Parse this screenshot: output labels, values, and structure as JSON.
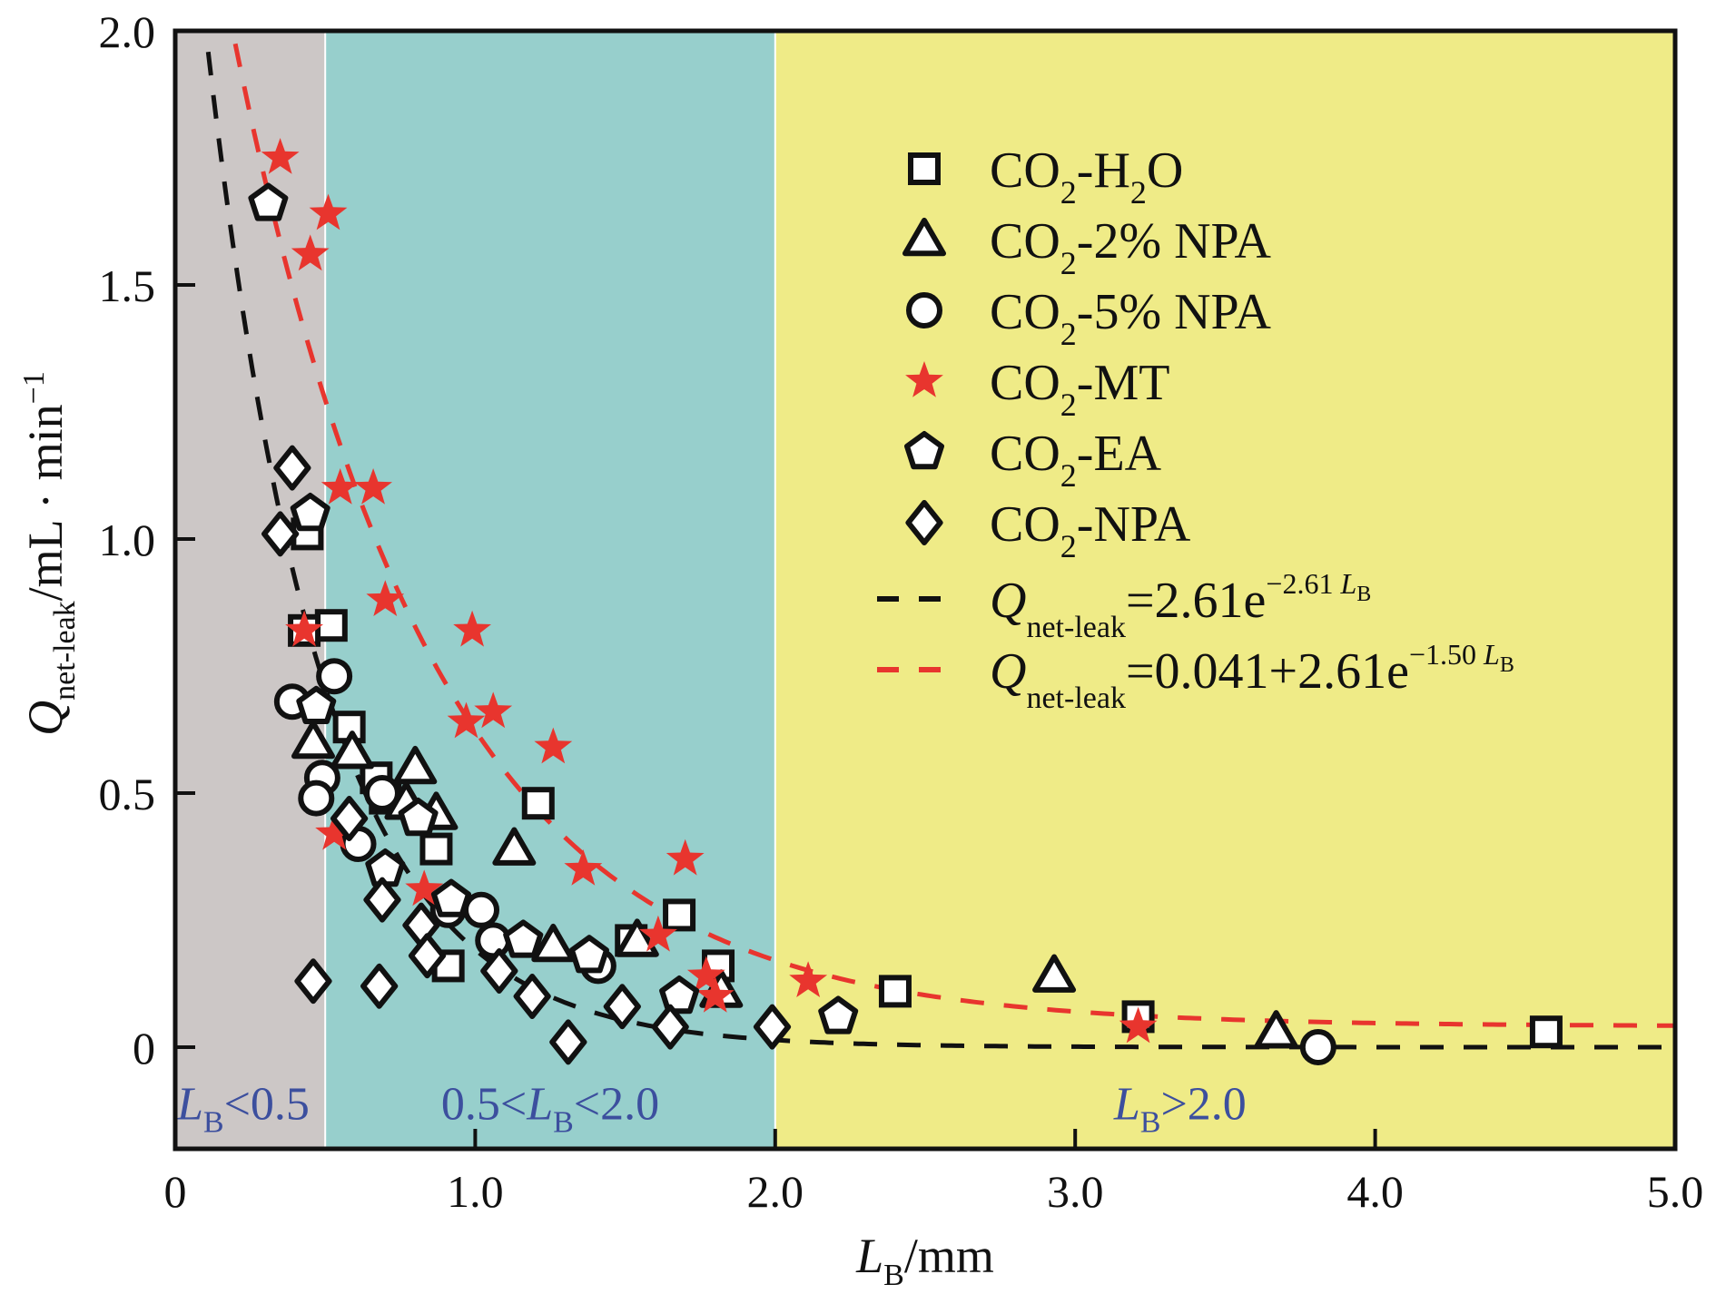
{
  "chart_data": {
    "type": "scatter",
    "title": "",
    "xlabel": {
      "main": "L",
      "sub": "B",
      "rest": "/mm"
    },
    "ylabel": {
      "main": "Q",
      "sub": "net-leak",
      "rest": "/mL · min",
      "sup": "−1"
    },
    "xlim": [
      0,
      5.0
    ],
    "ylim": [
      -0.2,
      2.0
    ],
    "xticks": [
      0,
      1.0,
      2.0,
      3.0,
      4.0,
      5.0
    ],
    "xtick_labels": [
      "0",
      "1.0",
      "2.0",
      "3.0",
      "4.0",
      "5.0"
    ],
    "yticks": [
      0,
      0.5,
      1.0,
      1.5,
      2.0
    ],
    "ytick_labels": [
      "0",
      "0.5",
      "1.0",
      "1.5",
      "2.0"
    ],
    "grid": false,
    "legend_position": "top-right",
    "regions": [
      {
        "x0": 0,
        "x1": 0.5,
        "color": "#ccc7c6",
        "label_main": "L",
        "label_sub": "B",
        "label_rest": "<0.5",
        "label_prefix": ""
      },
      {
        "x0": 0.5,
        "x1": 2.0,
        "color": "#97cfcc",
        "label_prefix": "0.5<",
        "label_main": "L",
        "label_sub": "B",
        "label_rest": "<2.0"
      },
      {
        "x0": 2.0,
        "x1": 5.0,
        "color": "#efeb87",
        "label_prefix": "",
        "label_main": "L",
        "label_sub": "B",
        "label_rest": ">2.0"
      }
    ],
    "series": [
      {
        "name": "CO2-H2O",
        "label_parts": [
          "CO",
          "2",
          "-H",
          "2",
          "O"
        ],
        "marker": "square",
        "fill": "#ffffff",
        "stroke": "#111111",
        "points": [
          [
            0.44,
            1.01
          ],
          [
            0.52,
            0.83
          ],
          [
            0.43,
            0.82
          ],
          [
            0.58,
            0.63
          ],
          [
            0.67,
            0.53
          ],
          [
            0.7,
            0.49
          ],
          [
            0.87,
            0.39
          ],
          [
            1.21,
            0.48
          ],
          [
            0.91,
            0.16
          ],
          [
            1.68,
            0.26
          ],
          [
            1.81,
            0.16
          ],
          [
            1.52,
            0.21
          ],
          [
            2.4,
            0.11
          ],
          [
            3.21,
            0.06
          ],
          [
            4.57,
            0.03
          ]
        ]
      },
      {
        "name": "CO2-2% NPA",
        "label_parts": [
          "CO",
          "2",
          "-2% NPA"
        ],
        "marker": "triangle",
        "fill": "#ffffff",
        "stroke": "#111111",
        "points": [
          [
            0.46,
            0.6
          ],
          [
            0.59,
            0.58
          ],
          [
            0.8,
            0.55
          ],
          [
            0.87,
            0.46
          ],
          [
            0.77,
            0.48
          ],
          [
            1.13,
            0.39
          ],
          [
            1.26,
            0.2
          ],
          [
            1.54,
            0.21
          ],
          [
            1.82,
            0.11
          ],
          [
            2.93,
            0.14
          ],
          [
            3.67,
            0.03
          ]
        ]
      },
      {
        "name": "CO2-5% NPA",
        "label_parts": [
          "CO",
          "2",
          "-5% NPA"
        ],
        "marker": "circle",
        "fill": "#ffffff",
        "stroke": "#111111",
        "points": [
          [
            0.53,
            0.73
          ],
          [
            0.39,
            0.68
          ],
          [
            0.49,
            0.53
          ],
          [
            0.47,
            0.49
          ],
          [
            0.61,
            0.4
          ],
          [
            0.69,
            0.5
          ],
          [
            0.91,
            0.27
          ],
          [
            1.02,
            0.27
          ],
          [
            1.06,
            0.21
          ],
          [
            1.41,
            0.16
          ],
          [
            3.81,
            0.0
          ]
        ]
      },
      {
        "name": "CO2-MT",
        "label_parts": [
          "CO",
          "2",
          "-MT"
        ],
        "marker": "star",
        "fill": "#e8352e",
        "stroke": "none",
        "points": [
          [
            0.35,
            1.75
          ],
          [
            0.51,
            1.64
          ],
          [
            0.45,
            1.56
          ],
          [
            0.55,
            1.1
          ],
          [
            0.66,
            1.1
          ],
          [
            0.7,
            0.88
          ],
          [
            0.99,
            0.82
          ],
          [
            0.97,
            0.64
          ],
          [
            1.06,
            0.66
          ],
          [
            1.26,
            0.59
          ],
          [
            1.36,
            0.35
          ],
          [
            1.7,
            0.37
          ],
          [
            1.61,
            0.22
          ],
          [
            1.77,
            0.14
          ],
          [
            1.8,
            0.1
          ],
          [
            2.11,
            0.13
          ],
          [
            0.53,
            0.42
          ],
          [
            0.83,
            0.31
          ],
          [
            0.43,
            0.82
          ],
          [
            3.21,
            0.04
          ]
        ]
      },
      {
        "name": "CO2-EA",
        "label_parts": [
          "CO",
          "2",
          "-EA"
        ],
        "marker": "pentagon",
        "fill": "#ffffff",
        "stroke": "#111111",
        "points": [
          [
            0.31,
            1.66
          ],
          [
            0.45,
            1.05
          ],
          [
            0.47,
            0.67
          ],
          [
            0.7,
            0.35
          ],
          [
            0.81,
            0.45
          ],
          [
            0.92,
            0.29
          ],
          [
            1.16,
            0.21
          ],
          [
            1.38,
            0.18
          ],
          [
            2.21,
            0.06
          ],
          [
            1.68,
            0.1
          ]
        ]
      },
      {
        "name": "CO2-NPA",
        "label_parts": [
          "CO",
          "2",
          "-NPA"
        ],
        "marker": "diamond",
        "fill": "#ffffff",
        "stroke": "#111111",
        "points": [
          [
            0.39,
            1.14
          ],
          [
            0.35,
            1.01
          ],
          [
            0.58,
            0.45
          ],
          [
            0.69,
            0.29
          ],
          [
            0.82,
            0.24
          ],
          [
            0.84,
            0.18
          ],
          [
            0.46,
            0.13
          ],
          [
            0.68,
            0.12
          ],
          [
            1.08,
            0.15
          ],
          [
            1.19,
            0.1
          ],
          [
            1.31,
            0.01
          ],
          [
            1.49,
            0.08
          ],
          [
            1.65,
            0.04
          ],
          [
            1.99,
            0.04
          ]
        ]
      }
    ],
    "fits": [
      {
        "name": "black-fit",
        "color": "#111111",
        "a": 0,
        "b": 2.61,
        "k": 2.61,
        "x_start": 0.11,
        "label": {
          "main": "Q",
          "sub": "net-leak",
          "eq": "=2.61e",
          "exp": "−2.61 ",
          "exp_var": "L",
          "exp_var_sub": "B"
        }
      },
      {
        "name": "red-fit",
        "color": "#e8352e",
        "a": 0.041,
        "b": 2.61,
        "k": 1.5,
        "x_start": 0.2,
        "label": {
          "main": "Q",
          "sub": "net-leak",
          "eq": "=0.041+2.61e",
          "exp": "−1.50 ",
          "exp_var": "L",
          "exp_var_sub": "B"
        }
      }
    ]
  }
}
